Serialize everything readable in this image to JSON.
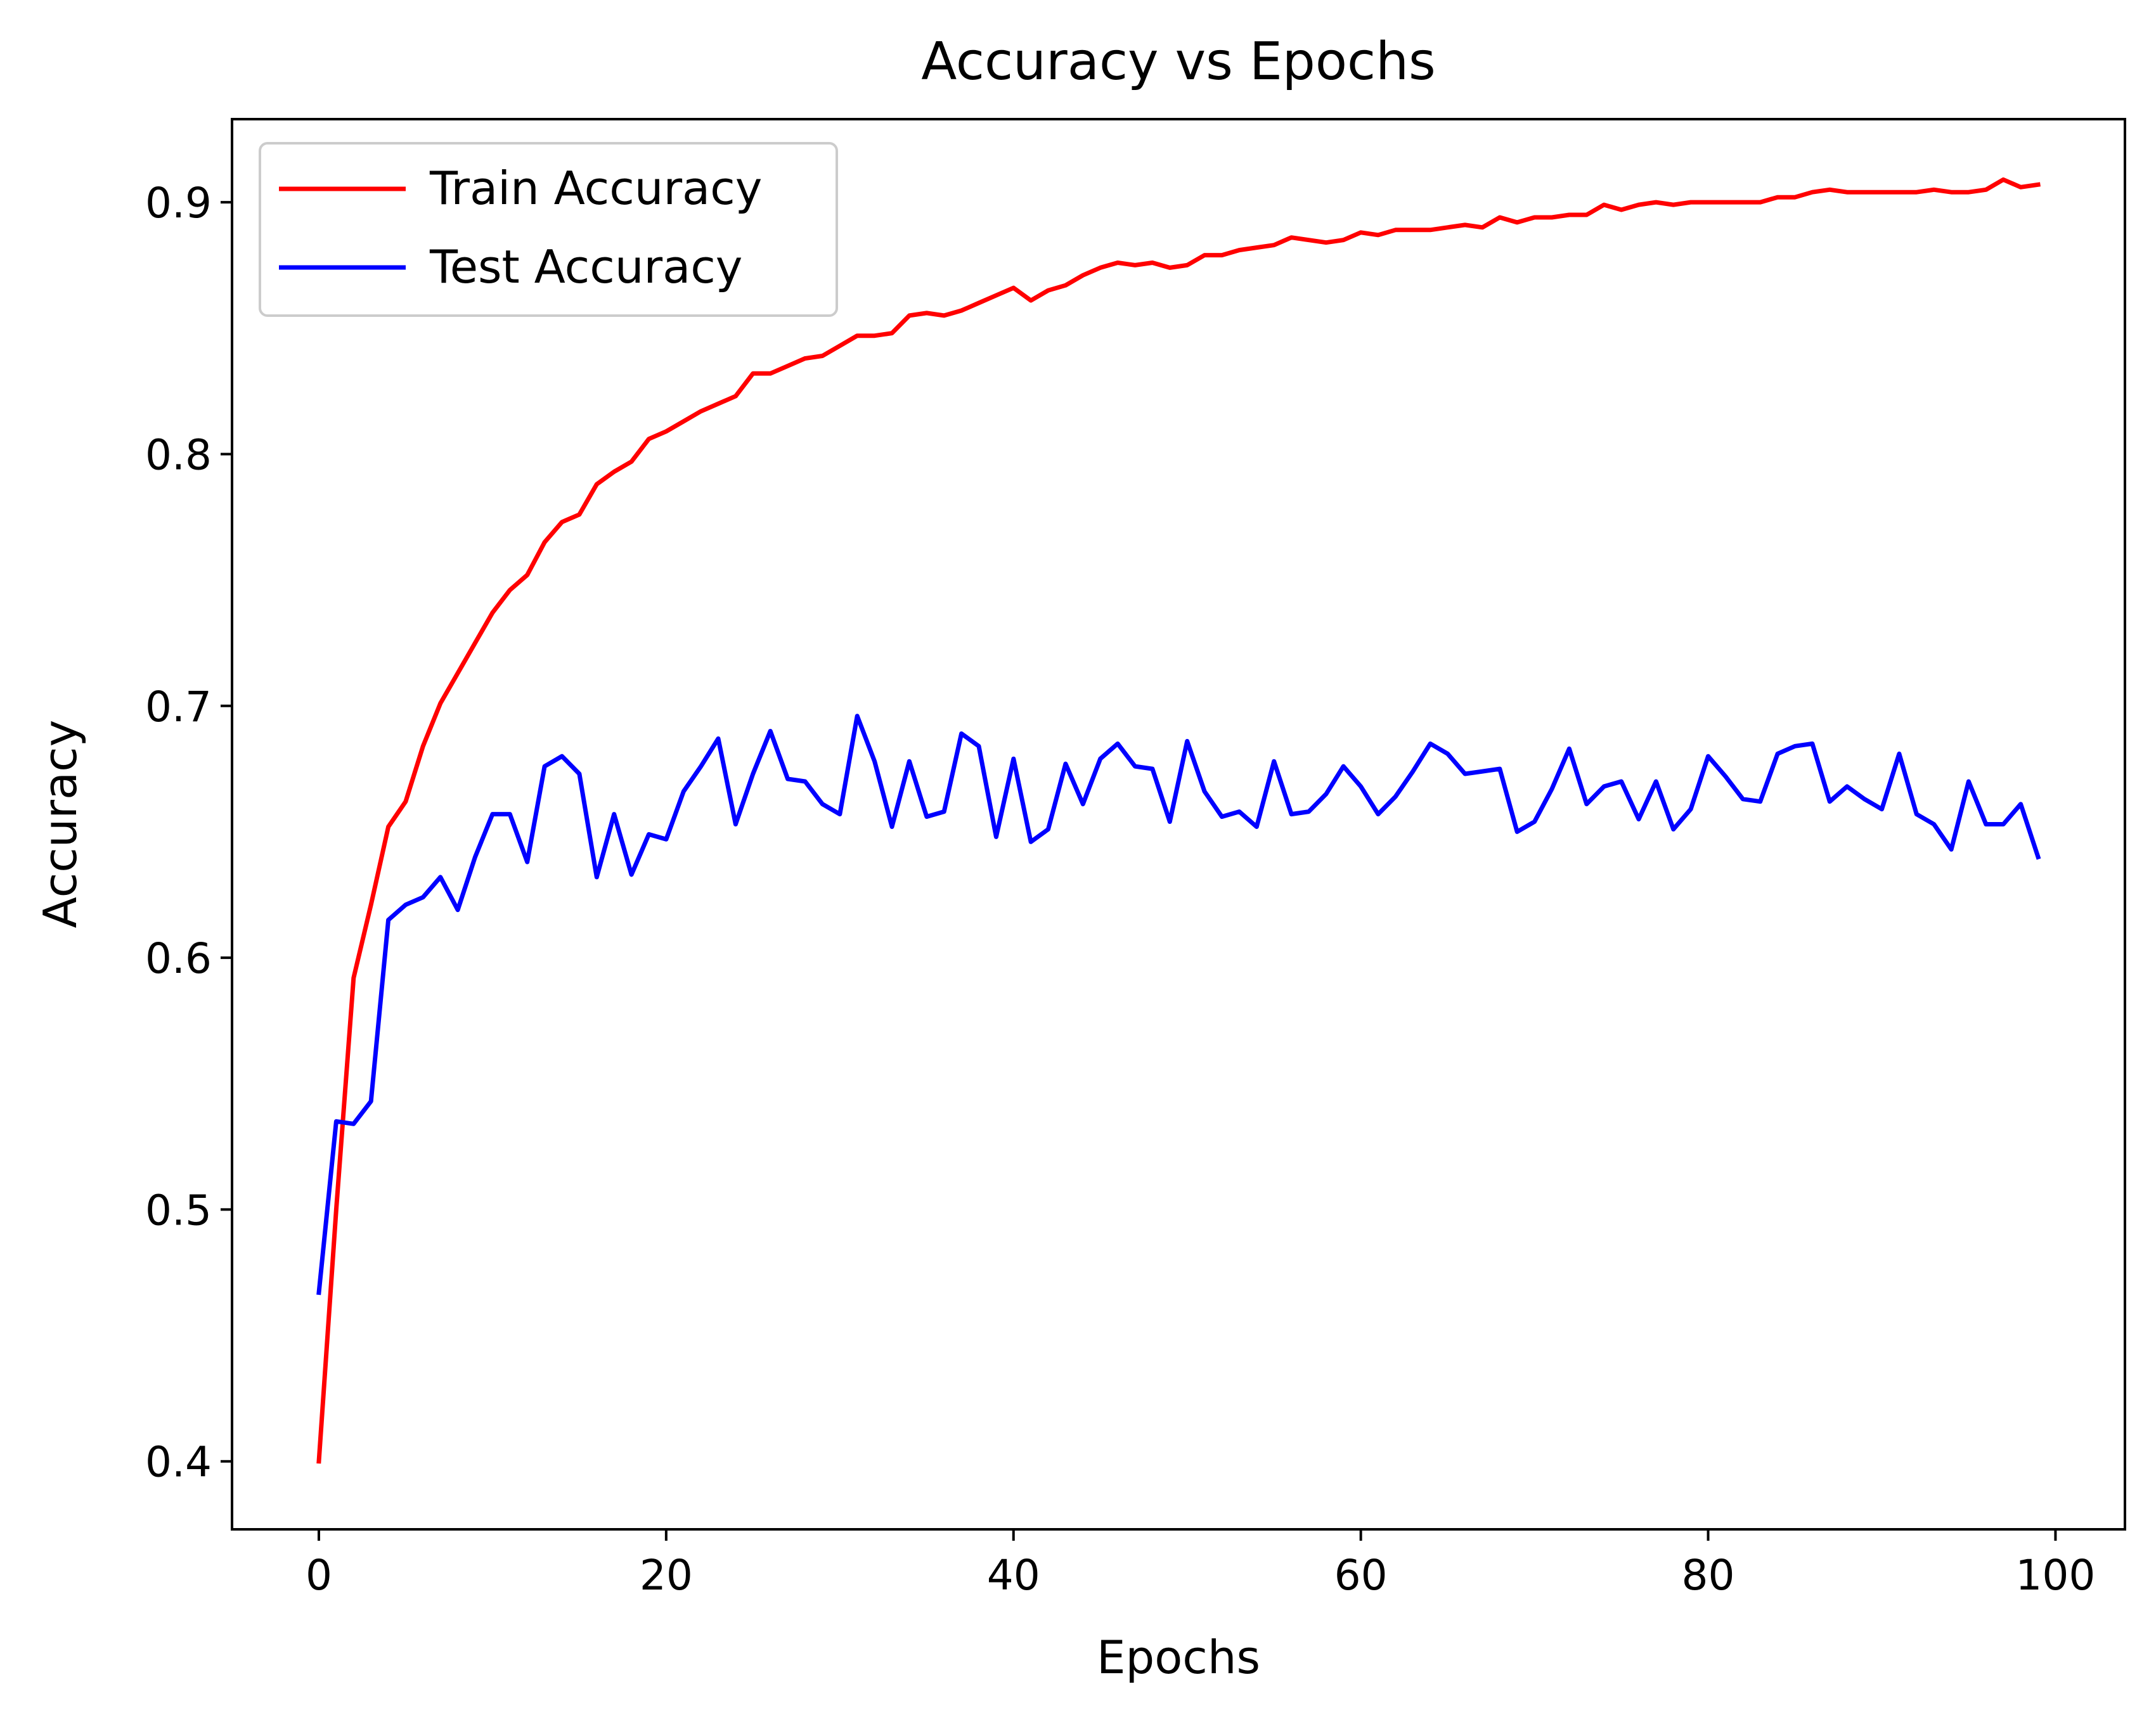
{
  "chart_data": {
    "type": "line",
    "title": "Accuracy vs Epochs",
    "xlabel": "Epochs",
    "ylabel": "Accuracy",
    "xlim": [
      -5,
      104
    ],
    "ylim": [
      0.373,
      0.933
    ],
    "xticks": [
      0,
      20,
      40,
      60,
      80,
      100
    ],
    "xtick_labels": [
      "0",
      "20",
      "40",
      "60",
      "80",
      "100"
    ],
    "yticks": [
      0.4,
      0.5,
      0.6,
      0.7,
      0.8,
      0.9
    ],
    "ytick_labels": [
      "0.4",
      "0.5",
      "0.6",
      "0.7",
      "0.8",
      "0.9"
    ],
    "grid": false,
    "legend_position": "top-left",
    "x": [
      0,
      1,
      2,
      3,
      4,
      5,
      6,
      7,
      8,
      9,
      10,
      11,
      12,
      13,
      14,
      15,
      16,
      17,
      18,
      19,
      20,
      21,
      22,
      23,
      24,
      25,
      26,
      27,
      28,
      29,
      30,
      31,
      32,
      33,
      34,
      35,
      36,
      37,
      38,
      39,
      40,
      41,
      42,
      43,
      44,
      45,
      46,
      47,
      48,
      49,
      50,
      51,
      52,
      53,
      54,
      55,
      56,
      57,
      58,
      59,
      60,
      61,
      62,
      63,
      64,
      65,
      66,
      67,
      68,
      69,
      70,
      71,
      72,
      73,
      74,
      75,
      76,
      77,
      78,
      79,
      80,
      81,
      82,
      83,
      84,
      85,
      86,
      87,
      88,
      89,
      90,
      91,
      92,
      93,
      94,
      95,
      96,
      97,
      98,
      99
    ],
    "series": [
      {
        "name": "Train Accuracy",
        "color": "#ff0000",
        "values": [
          0.4,
          0.5,
          0.592,
          0.621,
          0.652,
          0.662,
          0.684,
          0.701,
          0.713,
          0.725,
          0.737,
          0.746,
          0.752,
          0.765,
          0.773,
          0.776,
          0.788,
          0.793,
          0.797,
          0.806,
          0.809,
          0.813,
          0.817,
          0.82,
          0.823,
          0.832,
          0.832,
          0.835,
          0.838,
          0.839,
          0.843,
          0.847,
          0.847,
          0.848,
          0.855,
          0.856,
          0.855,
          0.857,
          0.86,
          0.863,
          0.866,
          0.861,
          0.865,
          0.867,
          0.871,
          0.874,
          0.876,
          0.875,
          0.876,
          0.874,
          0.875,
          0.879,
          0.879,
          0.881,
          0.882,
          0.883,
          0.886,
          0.885,
          0.884,
          0.885,
          0.888,
          0.887,
          0.889,
          0.889,
          0.889,
          0.89,
          0.891,
          0.89,
          0.894,
          0.892,
          0.894,
          0.894,
          0.895,
          0.895,
          0.899,
          0.897,
          0.899,
          0.9,
          0.899,
          0.9,
          0.9,
          0.9,
          0.9,
          0.9,
          0.902,
          0.902,
          0.904,
          0.905,
          0.904,
          0.904,
          0.904,
          0.904,
          0.904,
          0.905,
          0.904,
          0.904,
          0.905,
          0.909,
          0.906,
          0.907
        ]
      },
      {
        "name": "Test Accuracy",
        "color": "#0000ff",
        "values": [
          0.467,
          0.535,
          0.534,
          0.543,
          0.615,
          0.621,
          0.624,
          0.632,
          0.619,
          0.64,
          0.657,
          0.657,
          0.638,
          0.676,
          0.68,
          0.673,
          0.632,
          0.657,
          0.633,
          0.649,
          0.647,
          0.666,
          0.676,
          0.687,
          0.653,
          0.673,
          0.69,
          0.671,
          0.67,
          0.661,
          0.657,
          0.696,
          0.678,
          0.652,
          0.678,
          0.656,
          0.658,
          0.689,
          0.684,
          0.648,
          0.679,
          0.646,
          0.651,
          0.677,
          0.661,
          0.679,
          0.685,
          0.676,
          0.675,
          0.654,
          0.686,
          0.666,
          0.656,
          0.658,
          0.652,
          0.678,
          0.657,
          0.658,
          0.665,
          0.676,
          0.668,
          0.657,
          0.664,
          0.674,
          0.685,
          0.681,
          0.673,
          0.674,
          0.675,
          0.65,
          0.654,
          0.667,
          0.683,
          0.661,
          0.668,
          0.67,
          0.655,
          0.67,
          0.651,
          0.659,
          0.68,
          0.672,
          0.663,
          0.662,
          0.681,
          0.684,
          0.685,
          0.662,
          0.668,
          0.663,
          0.659,
          0.681,
          0.657,
          0.653,
          0.643,
          0.67,
          0.653,
          0.653,
          0.661,
          0.64
        ]
      }
    ]
  }
}
